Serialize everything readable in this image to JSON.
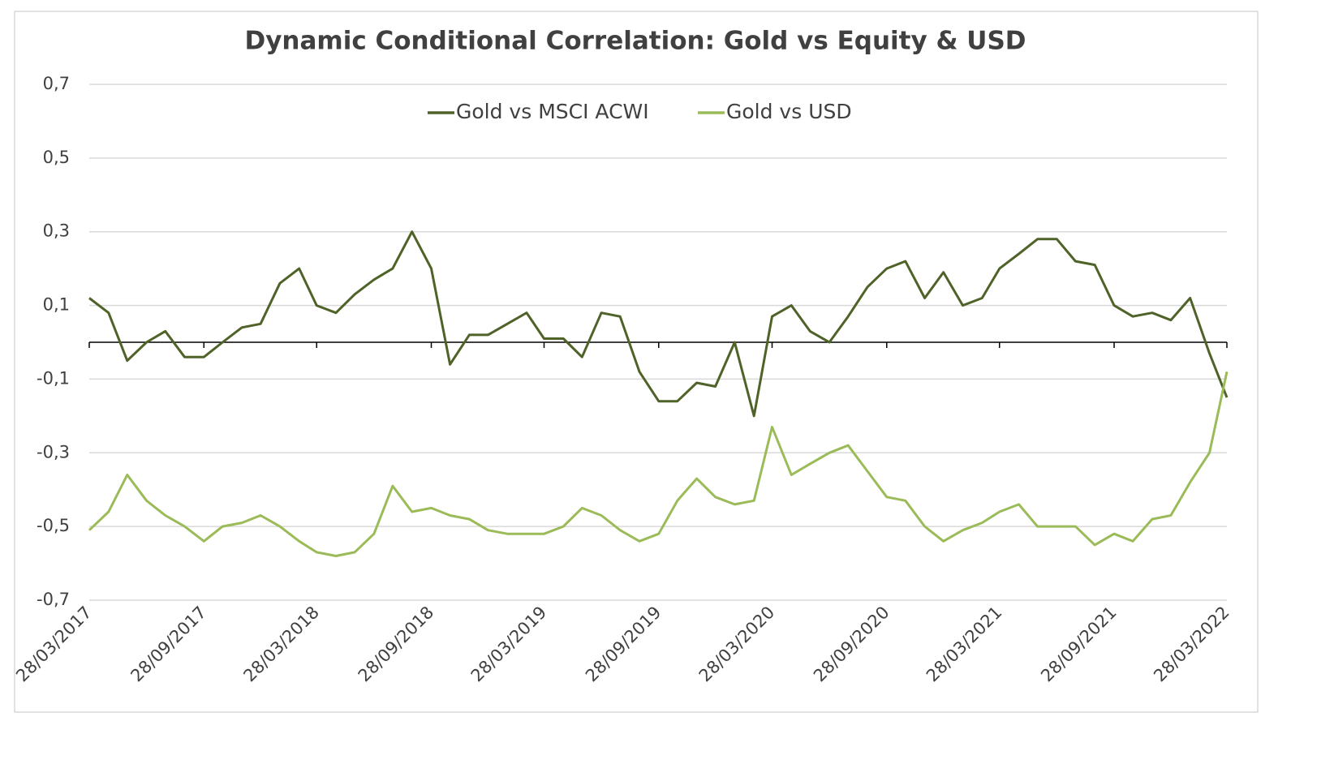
{
  "chart_data": {
    "type": "line",
    "title": "Dynamic Conditional Correlation: Gold vs Equity & USD",
    "x": [
      "28/03/2017",
      "28/04/2017",
      "28/05/2017",
      "28/06/2017",
      "28/07/2017",
      "28/08/2017",
      "28/09/2017",
      "28/10/2017",
      "28/11/2017",
      "28/12/2017",
      "28/01/2018",
      "28/02/2018",
      "28/03/2018",
      "28/04/2018",
      "28/05/2018",
      "28/06/2018",
      "28/07/2018",
      "28/08/2018",
      "28/09/2018",
      "28/10/2018",
      "28/11/2018",
      "28/12/2018",
      "28/01/2019",
      "28/02/2019",
      "28/03/2019",
      "28/04/2019",
      "28/05/2019",
      "28/06/2019",
      "28/07/2019",
      "28/08/2019",
      "28/09/2019",
      "28/10/2019",
      "28/11/2019",
      "28/12/2019",
      "28/01/2020",
      "28/02/2020",
      "28/03/2020",
      "28/04/2020",
      "28/05/2020",
      "28/06/2020",
      "28/07/2020",
      "28/08/2020",
      "28/09/2020",
      "28/10/2020",
      "28/11/2020",
      "28/12/2020",
      "28/01/2021",
      "28/02/2021",
      "28/03/2021",
      "28/04/2021",
      "28/05/2021",
      "28/06/2021",
      "28/07/2021",
      "28/08/2021",
      "28/09/2021",
      "28/10/2021",
      "28/11/2021",
      "28/12/2021",
      "28/01/2022",
      "28/02/2022",
      "28/03/2022"
    ],
    "series": [
      {
        "name": "Gold vs MSCI ACWI",
        "color": "#4f6228",
        "values": [
          0.12,
          0.08,
          -0.05,
          0.0,
          0.03,
          -0.04,
          -0.04,
          0.0,
          0.04,
          0.05,
          0.16,
          0.2,
          0.1,
          0.08,
          0.13,
          0.17,
          0.2,
          0.3,
          0.2,
          -0.06,
          0.02,
          0.02,
          0.05,
          0.08,
          0.01,
          0.01,
          -0.04,
          0.08,
          0.07,
          -0.08,
          -0.16,
          -0.16,
          -0.11,
          -0.12,
          0.0,
          -0.2,
          0.07,
          0.1,
          0.03,
          0.0,
          0.07,
          0.15,
          0.2,
          0.22,
          0.12,
          0.19,
          0.1,
          0.12,
          0.2,
          0.24,
          0.28,
          0.28,
          0.22,
          0.21,
          0.1,
          0.07,
          0.08,
          0.06,
          0.12,
          -0.03,
          -0.15
        ]
      },
      {
        "name": "Gold vs USD",
        "color": "#9bbb59",
        "values": [
          -0.51,
          -0.46,
          -0.36,
          -0.43,
          -0.47,
          -0.5,
          -0.54,
          -0.5,
          -0.49,
          -0.47,
          -0.5,
          -0.54,
          -0.57,
          -0.58,
          -0.57,
          -0.52,
          -0.39,
          -0.46,
          -0.45,
          -0.47,
          -0.48,
          -0.51,
          -0.52,
          -0.52,
          -0.52,
          -0.5,
          -0.45,
          -0.47,
          -0.51,
          -0.54,
          -0.52,
          -0.43,
          -0.37,
          -0.42,
          -0.44,
          -0.43,
          -0.23,
          -0.36,
          -0.33,
          -0.3,
          -0.28,
          -0.35,
          -0.42,
          -0.43,
          -0.5,
          -0.54,
          -0.51,
          -0.49,
          -0.46,
          -0.44,
          -0.5,
          -0.5,
          -0.5,
          -0.55,
          -0.52,
          -0.54,
          -0.48,
          -0.47,
          -0.38,
          -0.3,
          -0.08
        ]
      }
    ],
    "xlim": [
      "28/03/2017",
      "28/03/2022"
    ],
    "xticks": [
      "28/03/2017",
      "28/09/2017",
      "28/03/2018",
      "28/09/2018",
      "28/03/2019",
      "28/09/2019",
      "28/03/2020",
      "28/09/2020",
      "28/03/2021",
      "28/09/2021",
      "28/03/2022"
    ],
    "ylim": [
      -0.7,
      0.7
    ],
    "yticks": [
      {
        "value": -0.7,
        "label": "-0,7"
      },
      {
        "value": -0.5,
        "label": "-0,5"
      },
      {
        "value": -0.3,
        "label": "-0,3"
      },
      {
        "value": -0.1,
        "label": "-0,1"
      },
      {
        "value": 0.1,
        "label": "0,1"
      },
      {
        "value": 0.3,
        "label": "0,3"
      },
      {
        "value": 0.5,
        "label": "0,5"
      },
      {
        "value": 0.7,
        "label": "0,7"
      }
    ],
    "grid": true,
    "legend": "top"
  }
}
